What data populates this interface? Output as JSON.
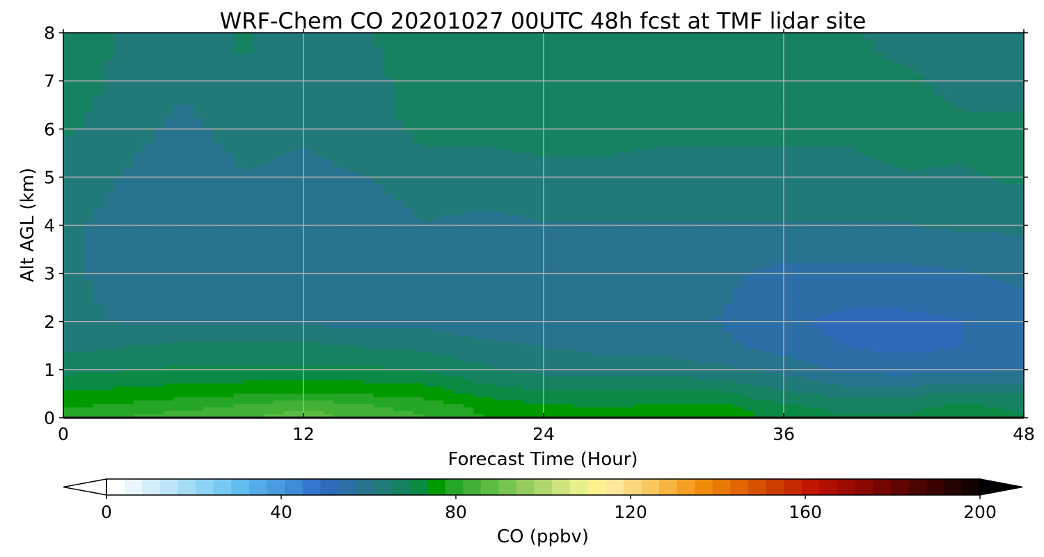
{
  "chart_data": {
    "type": "heatmap",
    "title": "WRF-Chem CO 20201027 00UTC 48h fcst at TMF lidar site",
    "xlabel": "Forecast Time (Hour)",
    "ylabel": "Alt AGL (km)",
    "xlim": [
      0,
      48
    ],
    "ylim": [
      0,
      8
    ],
    "x_ticks": [
      0,
      12,
      24,
      36,
      48
    ],
    "y_ticks": [
      0,
      1,
      2,
      3,
      4,
      5,
      6,
      7,
      8
    ],
    "grid": true,
    "x": [
      0,
      3,
      6,
      9,
      12,
      15,
      18,
      21,
      24,
      27,
      30,
      33,
      36,
      39,
      42,
      45,
      48
    ],
    "y": [
      0,
      0.25,
      0.5,
      1,
      1.5,
      2,
      3,
      4,
      5,
      6,
      7,
      8
    ],
    "z": [
      [
        82,
        82,
        84,
        85,
        88,
        84,
        82,
        78,
        76,
        75,
        76,
        76,
        72,
        70,
        70,
        72,
        70
      ],
      [
        77,
        78,
        80,
        82,
        85,
        82,
        80,
        76,
        74,
        73,
        74,
        74,
        70,
        68,
        68,
        70,
        68
      ],
      [
        74,
        75,
        76,
        77,
        78,
        77,
        76,
        72,
        70,
        70,
        71,
        70,
        66,
        64,
        64,
        66,
        65
      ],
      [
        68,
        69,
        70,
        70,
        70,
        70,
        69,
        66,
        64,
        63,
        63,
        62,
        60,
        56,
        55,
        56,
        57
      ],
      [
        64,
        65,
        66,
        66,
        66,
        65,
        64,
        62,
        61,
        60,
        60,
        58,
        55,
        53,
        52,
        53,
        55
      ],
      [
        62,
        61,
        60,
        60,
        60,
        60,
        60,
        59,
        59,
        58,
        58,
        57,
        54,
        52,
        52,
        53,
        55
      ],
      [
        62,
        60,
        58,
        59,
        59,
        58,
        60,
        59,
        58,
        59,
        59,
        58,
        56,
        56,
        56,
        57,
        58
      ],
      [
        62,
        60,
        57,
        59,
        58,
        58,
        61,
        60,
        61,
        61,
        61,
        61,
        61,
        61,
        61,
        62,
        62
      ],
      [
        63,
        61,
        58,
        61,
        60,
        61,
        64,
        64,
        64,
        64,
        64,
        64,
        64,
        64,
        65,
        65,
        66
      ],
      [
        66,
        63,
        60,
        63,
        62,
        64,
        66,
        66,
        67,
        67,
        66,
        66,
        66,
        66,
        67,
        66,
        66
      ],
      [
        68,
        64,
        62,
        65,
        62,
        64,
        67,
        67,
        68,
        68,
        67,
        67,
        66,
        66,
        66,
        64,
        64
      ],
      [
        68,
        65,
        63,
        66,
        62,
        65,
        67,
        67,
        68,
        68,
        68,
        68,
        67,
        66,
        64,
        63,
        63
      ]
    ],
    "colorbar": {
      "label": "CO  (ppbv)",
      "min": 0,
      "max": 200,
      "ticks": [
        0,
        40,
        80,
        120,
        160,
        200
      ],
      "extend": "both",
      "extend_low_color": "#ffffff",
      "extend_high_color": "#000000",
      "colors": [
        "#ffffff",
        "#eaf6fc",
        "#d3eefa",
        "#bce5f8",
        "#a5dcf6",
        "#8ed3f4",
        "#77caf2",
        "#62bdf0",
        "#56ace8",
        "#4a9ce0",
        "#3f8bd8",
        "#3478ce",
        "#2f6ab8",
        "#2c6fa6",
        "#28738e",
        "#217a78",
        "#168262",
        "#0a8a44",
        "#009a00",
        "#25a626",
        "#42b135",
        "#5cbb42",
        "#78c450",
        "#94cd5d",
        "#b0d86c",
        "#cde57c",
        "#e6f08c",
        "#fcf18f",
        "#fde79a",
        "#fbd87e",
        "#f9c75f",
        "#f7b442",
        "#f5a025",
        "#f08c0c",
        "#e97905",
        "#e06503",
        "#d65102",
        "#cc3d00",
        "#c62a00",
        "#c01500",
        "#b00e00",
        "#9c0b00",
        "#880800",
        "#740600",
        "#600500",
        "#4c0400",
        "#380300",
        "#240200",
        "#140100"
      ]
    }
  }
}
